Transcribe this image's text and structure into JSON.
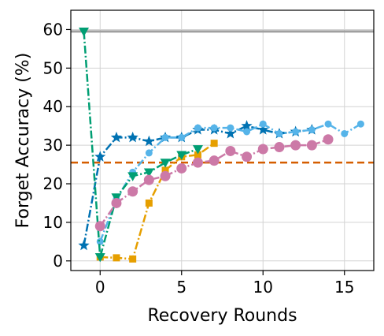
{
  "chart_data": {
    "type": "line",
    "title": "",
    "xlabel": "Recovery Rounds",
    "ylabel": "Forget Accuracy (%)",
    "xlim": [
      -1.8,
      16.8
    ],
    "ylim": [
      -2.5,
      65
    ],
    "xticks": [
      0,
      5,
      10,
      15
    ],
    "yticks": [
      0,
      10,
      20,
      30,
      40,
      50,
      60
    ],
    "grid": true,
    "legend": "none",
    "reference_lines": [
      {
        "y": 59.5,
        "color": "#a0a0a0",
        "style": "solid"
      },
      {
        "y": 25.5,
        "color": "#d55e00",
        "style": "dashed"
      }
    ],
    "series": [
      {
        "color": "#0072b2",
        "marker": "star",
        "linestyle": "dashdot",
        "x": [
          -1,
          0,
          1,
          2,
          3,
          4,
          5,
          6,
          7,
          8,
          9,
          10,
          11,
          12,
          13
        ],
        "y": [
          4,
          27,
          32,
          32,
          31,
          32,
          32,
          34,
          34,
          33,
          35,
          34,
          33,
          33.5,
          34
        ]
      },
      {
        "color": "#56b4e9",
        "marker": "circle-small",
        "linestyle": "dashdot",
        "x": [
          0,
          1,
          2,
          3,
          4,
          5,
          6,
          7,
          8,
          9,
          10,
          11,
          12,
          13,
          14,
          15,
          16
        ],
        "y": [
          5,
          16,
          23,
          28,
          32,
          32,
          34.5,
          34.5,
          34.5,
          33.5,
          35.5,
          33,
          33.5,
          34,
          35.5,
          33,
          35.5
        ]
      },
      {
        "color": "#e69f00",
        "marker": "square",
        "linestyle": "dashdot",
        "x": [
          0,
          1,
          2,
          3,
          4,
          5,
          6,
          7
        ],
        "y": [
          1,
          0.8,
          0.5,
          15,
          23.5,
          27,
          27.5,
          30.5
        ]
      },
      {
        "color": "#009e73",
        "marker": "triangle-down",
        "linestyle": "dashdot",
        "x": [
          -1,
          0,
          1,
          2,
          3,
          4,
          5,
          6
        ],
        "y": [
          59.5,
          1,
          16.5,
          22,
          23,
          25.5,
          27.5,
          29
        ]
      },
      {
        "color": "#cc79a7",
        "marker": "circle",
        "linestyle": "dashdot",
        "x": [
          0,
          1,
          2,
          3,
          4,
          5,
          6,
          7,
          8,
          9,
          10,
          11,
          12,
          13,
          14
        ],
        "y": [
          9,
          15,
          18,
          21,
          22,
          24,
          25.5,
          26,
          28.5,
          27,
          29,
          29.5,
          30,
          30,
          31.5
        ]
      }
    ]
  }
}
